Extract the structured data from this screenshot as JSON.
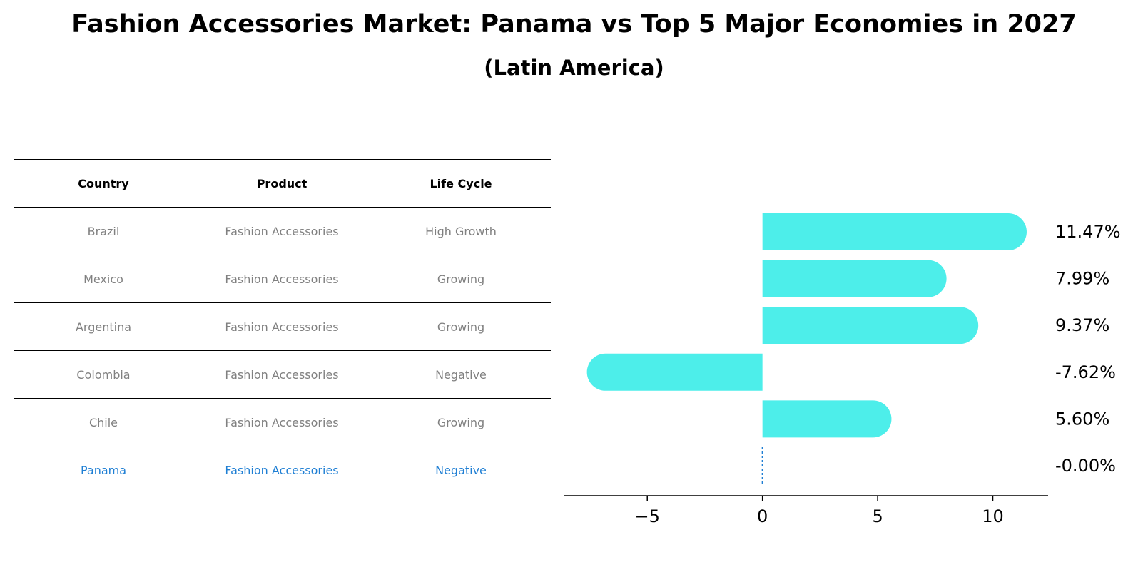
{
  "title": "Fashion Accessories Market: Panama vs Top 5 Major Economies in 2027",
  "subtitle": "(Latin America)",
  "table": {
    "headers": [
      "Country",
      "Product",
      "Life Cycle"
    ],
    "rows": [
      [
        "Brazil",
        "Fashion Accessories",
        "High Growth"
      ],
      [
        "Mexico",
        "Fashion Accessories",
        "Growing"
      ],
      [
        "Argentina",
        "Fashion Accessories",
        "Growing"
      ],
      [
        "Colombia",
        "Fashion Accessories",
        "Negative"
      ],
      [
        "Chile",
        "Fashion Accessories",
        "Growing"
      ],
      [
        "Panama",
        "Fashion Accessories",
        "Negative"
      ]
    ],
    "highlight_row": 5,
    "highlight_color": "#1f7fd4"
  },
  "chart_data": {
    "type": "bar",
    "orientation": "horizontal",
    "categories": [
      "Brazil",
      "Mexico",
      "Argentina",
      "Colombia",
      "Chile",
      "Panama"
    ],
    "values": [
      11.47,
      7.99,
      9.37,
      -7.62,
      5.6,
      -0.0
    ],
    "value_labels": [
      "11.47%",
      "7.99%",
      "9.37%",
      "-7.62%",
      "5.60%",
      "-0.00%"
    ],
    "xticks": [
      -5,
      0,
      5,
      10
    ],
    "xtick_labels": [
      "−5",
      "0",
      "5",
      "10"
    ],
    "xlim": [
      -8.6,
      12.4
    ],
    "bar_color": "#4deeea",
    "zero_line_color": "#1f7fd4"
  }
}
